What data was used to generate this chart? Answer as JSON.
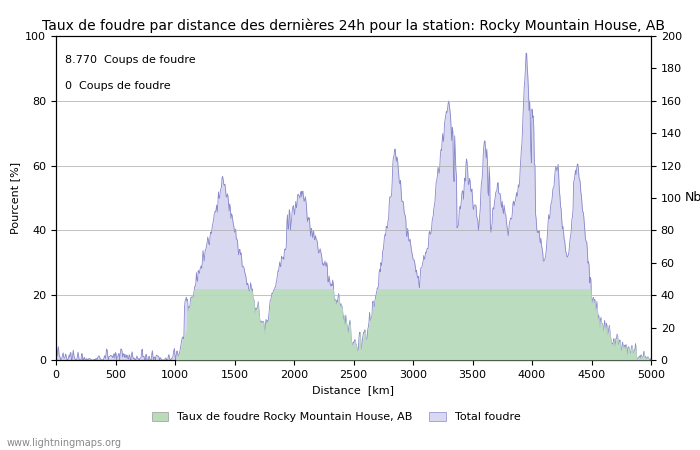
{
  "title": "Taux de foudre par distance des dernières 24h pour la station: Rocky Mountain House, AB",
  "xlabel": "Distance  [km]",
  "ylabel_left": "Pourcent [%]",
  "ylabel_right": "Nb",
  "annotation_line1": "8.770  Coups de foudre",
  "annotation_line2": "0  Coups de foudre",
  "legend_label1": "Taux de foudre Rocky Mountain House, AB",
  "legend_label2": "Total foudre",
  "watermark": "www.lightningmaps.org",
  "xlim": [
    0,
    5000
  ],
  "ylim_left": [
    0,
    100
  ],
  "ylim_right": [
    0,
    200
  ],
  "xticks": [
    0,
    500,
    1000,
    1500,
    2000,
    2500,
    3000,
    3500,
    4000,
    4500,
    5000
  ],
  "yticks_left": [
    0,
    20,
    40,
    60,
    80,
    100
  ],
  "yticks_right": [
    0,
    20,
    40,
    60,
    80,
    100,
    120,
    140,
    160,
    180,
    200
  ],
  "line_color": "#8888cc",
  "fill_color": "#d8d8f0",
  "green_fill_color": "#b8ddb8",
  "background_color": "#ffffff",
  "grid_color": "#aaaaaa",
  "title_fontsize": 10,
  "label_fontsize": 8,
  "tick_fontsize": 8,
  "annotation_fontsize": 8
}
